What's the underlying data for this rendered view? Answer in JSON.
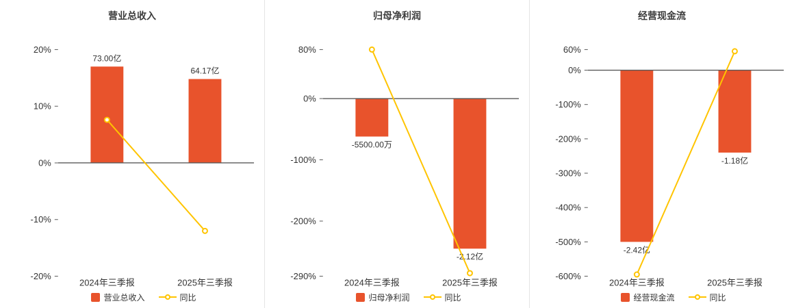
{
  "page": {
    "background": "#ffffff"
  },
  "colors": {
    "bar": "#e8532c",
    "line": "#ffc400",
    "axis_text": "#333333",
    "zero_line": "#595959",
    "divider": "#e4e4e4",
    "title": "#3c3c3c"
  },
  "chart_data": [
    {
      "type": "bar",
      "title": "营业总收入",
      "categories": [
        "2024年三季报",
        "2025年三季报"
      ],
      "ylim": [
        -20,
        20
      ],
      "yticks": [
        20,
        10,
        0,
        -10,
        -20
      ],
      "ytick_suffix": "%",
      "grid": false,
      "legend_position": "bottom",
      "bar_series": {
        "name": "营业总收入",
        "labels": [
          "73.00亿",
          "64.17亿"
        ],
        "plot_values": [
          17,
          14.8
        ]
      },
      "line_series": {
        "name": "同比",
        "values": [
          7.6,
          -12
        ]
      }
    },
    {
      "type": "bar",
      "title": "归母净利润",
      "categories": [
        "2024年三季报",
        "2025年三季报"
      ],
      "ylim": [
        -290,
        80
      ],
      "yticks": [
        80,
        0,
        -100,
        -200,
        -290
      ],
      "ytick_suffix": "%",
      "grid": false,
      "legend_position": "bottom",
      "bar_series": {
        "name": "归母净利润",
        "labels": [
          "-5500.00万",
          "-2.12亿"
        ],
        "plot_values": [
          -62,
          -245
        ]
      },
      "line_series": {
        "name": "同比",
        "values": [
          80,
          -285
        ]
      }
    },
    {
      "type": "bar",
      "title": "经营现金流",
      "categories": [
        "2024年三季报",
        "2025年三季报"
      ],
      "ylim": [
        -600,
        60
      ],
      "yticks": [
        60,
        0,
        -100,
        -200,
        -300,
        -400,
        -500,
        -600
      ],
      "ytick_suffix": "%",
      "grid": false,
      "legend_position": "bottom",
      "bar_series": {
        "name": "经营现金流",
        "labels": [
          "-2.42亿",
          "-1.18亿"
        ],
        "plot_values": [
          -500,
          -240
        ]
      },
      "line_series": {
        "name": "同比",
        "values": [
          -595,
          55
        ]
      }
    }
  ]
}
